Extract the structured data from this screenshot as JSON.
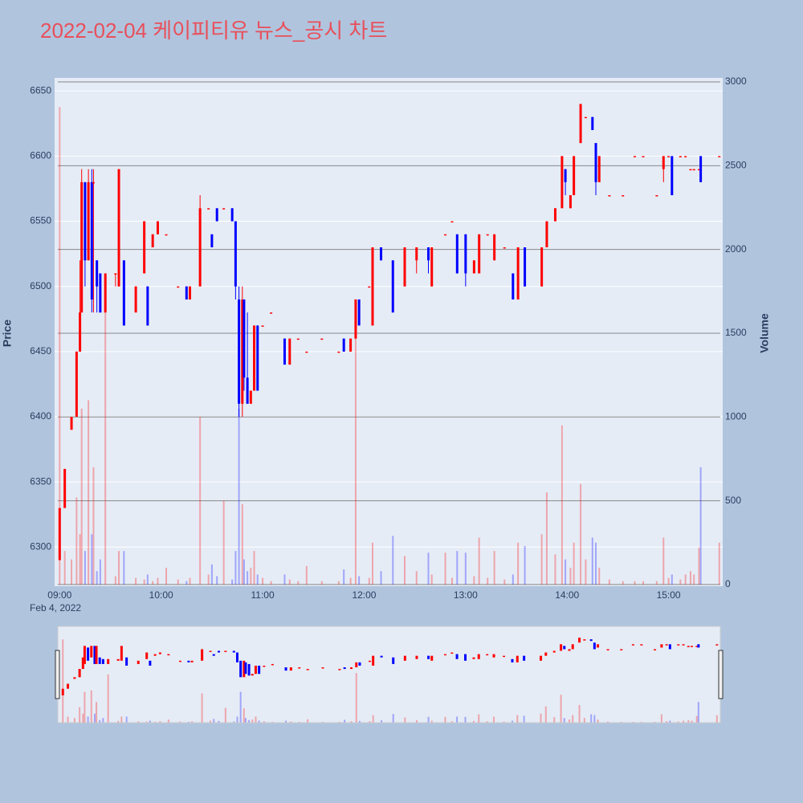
{
  "chart_data": {
    "type": "candlestick",
    "title": "2022-02-04 케이피티유 뉴스_공시 차트",
    "y_label": "Price",
    "y2_label": "Volume",
    "x_date_label": "Feb 4, 2022",
    "increasing_color": "#ff0000",
    "decreasing_color": "#0000ff",
    "xlim": [
      "08:57",
      "15:32"
    ],
    "xticks": [
      "09:00",
      "10:00",
      "11:00",
      "12:00",
      "13:00",
      "14:00",
      "15:00"
    ],
    "ylim": [
      6270,
      6660
    ],
    "yticks": [
      6300,
      6350,
      6400,
      6450,
      6500,
      6550,
      6600,
      6650
    ],
    "y2lim": [
      -10,
      3024
    ],
    "y2ticks": [
      0,
      500,
      1000,
      1500,
      2000,
      2500,
      3000
    ],
    "grid": true,
    "rangeslider": true,
    "x": [
      "09:00",
      "09:03",
      "09:07",
      "09:10",
      "09:12",
      "09:13",
      "09:15",
      "09:17",
      "09:19",
      "09:20",
      "09:22",
      "09:24",
      "09:27",
      "09:33",
      "09:35",
      "09:38",
      "09:45",
      "09:50",
      "09:52",
      "09:55",
      "09:58",
      "10:03",
      "10:10",
      "10:15",
      "10:17",
      "10:23",
      "10:28",
      "10:30",
      "10:33",
      "10:37",
      "10:42",
      "10:44",
      "10:46",
      "10:48",
      "10:49",
      "10:51",
      "10:53",
      "10:55",
      "10:57",
      "11:00",
      "11:05",
      "11:13",
      "11:16",
      "11:21",
      "11:26",
      "11:35",
      "11:45",
      "11:48",
      "11:52",
      "11:55",
      "11:57",
      "12:03",
      "12:05",
      "12:10",
      "12:17",
      "12:24",
      "12:31",
      "12:38",
      "12:40",
      "12:48",
      "12:52",
      "12:55",
      "13:00",
      "13:05",
      "13:08",
      "13:13",
      "13:17",
      "13:23",
      "13:28",
      "13:31",
      "13:35",
      "13:45",
      "13:48",
      "13:53",
      "13:57",
      "13:59",
      "14:02",
      "14:04",
      "14:08",
      "14:11",
      "14:15",
      "14:17",
      "14:19",
      "14:25",
      "14:33",
      "14:40",
      "14:45",
      "14:53",
      "14:57",
      "15:00",
      "15:02",
      "15:07",
      "15:10",
      "15:13",
      "15:15",
      "15:18",
      "15:19",
      "15:30"
    ],
    "open": [
      6290,
      6330,
      6390,
      6400,
      6450,
      6480,
      6580,
      6520,
      6580,
      6580,
      6520,
      6510,
      6480,
      6510,
      6500,
      6520,
      6480,
      6510,
      6500,
      6530,
      6540,
      6540,
      6500,
      6500,
      6490,
      6500,
      6560,
      6540,
      6560,
      6560,
      6560,
      6550,
      6490,
      6410,
      6490,
      6430,
      6410,
      6420,
      6470,
      6470,
      6480,
      6460,
      6440,
      6460,
      6450,
      6460,
      6450,
      6460,
      6450,
      6460,
      6490,
      6500,
      6470,
      6530,
      6520,
      6500,
      6520,
      6530,
      6500,
      6540,
      6550,
      6540,
      6540,
      6510,
      6510,
      6540,
      6520,
      6530,
      6510,
      6490,
      6530,
      6500,
      6530,
      6550,
      6560,
      6590,
      6560,
      6570,
      6610,
      6630,
      6630,
      6610,
      6580,
      6570,
      6570,
      6600,
      6600,
      6570,
      6590,
      6600,
      6600,
      6600,
      6600,
      6590,
      6590,
      6590,
      6600,
      6600
    ],
    "high": [
      6330,
      6360,
      6400,
      6450,
      6520,
      6590,
      6580,
      6590,
      6590,
      6590,
      6520,
      6510,
      6510,
      6510,
      6590,
      6520,
      6500,
      6550,
      6500,
      6540,
      6550,
      6540,
      6500,
      6500,
      6500,
      6570,
      6560,
      6540,
      6560,
      6560,
      6560,
      6550,
      6500,
      6500,
      6490,
      6480,
      6420,
      6470,
      6470,
      6470,
      6480,
      6460,
      6460,
      6460,
      6450,
      6460,
      6450,
      6460,
      6460,
      6490,
      6490,
      6500,
      6530,
      6530,
      6520,
      6530,
      6530,
      6530,
      6530,
      6540,
      6550,
      6540,
      6540,
      6520,
      6540,
      6540,
      6540,
      6530,
      6510,
      6530,
      6530,
      6530,
      6550,
      6560,
      6600,
      6590,
      6570,
      6600,
      6640,
      6630,
      6630,
      6610,
      6600,
      6570,
      6570,
      6600,
      6600,
      6570,
      6600,
      6600,
      6600,
      6600,
      6600,
      6590,
      6590,
      6590,
      6600,
      6600
    ],
    "low": [
      6290,
      6330,
      6390,
      6400,
      6450,
      6480,
      6500,
      6520,
      6480,
      6480,
      6480,
      6480,
      6480,
      6500,
      6500,
      6470,
      6480,
      6510,
      6470,
      6530,
      6540,
      6540,
      6500,
      6490,
      6490,
      6500,
      6560,
      6530,
      6550,
      6560,
      6550,
      6490,
      6400,
      6400,
      6420,
      6410,
      6410,
      6420,
      6420,
      6470,
      6480,
      6440,
      6440,
      6460,
      6450,
      6460,
      6450,
      6450,
      6450,
      6460,
      6470,
      6500,
      6470,
      6520,
      6480,
      6500,
      6510,
      6510,
      6500,
      6540,
      6550,
      6510,
      6500,
      6510,
      6510,
      6540,
      6520,
      6530,
      6490,
      6490,
      6500,
      6500,
      6530,
      6550,
      6560,
      6570,
      6560,
      6570,
      6610,
      6630,
      6620,
      6570,
      6580,
      6570,
      6570,
      6600,
      6600,
      6570,
      6580,
      6600,
      6570,
      6600,
      6600,
      6590,
      6590,
      6590,
      6580,
      6600
    ],
    "close": [
      6330,
      6360,
      6400,
      6450,
      6480,
      6580,
      6520,
      6580,
      6490,
      6580,
      6500,
      6480,
      6510,
      6510,
      6590,
      6470,
      6500,
      6550,
      6470,
      6540,
      6550,
      6540,
      6500,
      6490,
      6500,
      6560,
      6560,
      6530,
      6550,
      6560,
      6550,
      6500,
      6410,
      6490,
      6430,
      6410,
      6420,
      6470,
      6420,
      6470,
      6480,
      6440,
      6460,
      6460,
      6450,
      6460,
      6450,
      6450,
      6460,
      6490,
      6470,
      6500,
      6530,
      6520,
      6480,
      6530,
      6530,
      6520,
      6530,
      6540,
      6550,
      6510,
      6510,
      6520,
      6540,
      6540,
      6540,
      6530,
      6490,
      6530,
      6500,
      6530,
      6550,
      6560,
      6600,
      6580,
      6570,
      6600,
      6640,
      6630,
      6620,
      6580,
      6600,
      6570,
      6570,
      6600,
      6600,
      6570,
      6600,
      6600,
      6570,
      6600,
      6600,
      6590,
      6590,
      6590,
      6580,
      6600
    ],
    "volume": [
      2850,
      200,
      150,
      520,
      300,
      1050,
      200,
      1100,
      300,
      700,
      80,
      150,
      1650,
      50,
      200,
      200,
      40,
      30,
      60,
      20,
      40,
      100,
      30,
      20,
      40,
      1000,
      60,
      120,
      50,
      500,
      30,
      200,
      1050,
      480,
      150,
      80,
      100,
      200,
      60,
      40,
      20,
      60,
      30,
      20,
      110,
      20,
      20,
      90,
      40,
      1700,
      50,
      40,
      250,
      80,
      290,
      170,
      80,
      190,
      60,
      190,
      40,
      200,
      190,
      50,
      280,
      40,
      200,
      30,
      60,
      250,
      230,
      300,
      550,
      180,
      950,
      150,
      100,
      250,
      600,
      150,
      280,
      250,
      100,
      30,
      20,
      20,
      20,
      20,
      280,
      40,
      60,
      30,
      60,
      80,
      60,
      220,
      700,
      250
    ]
  }
}
